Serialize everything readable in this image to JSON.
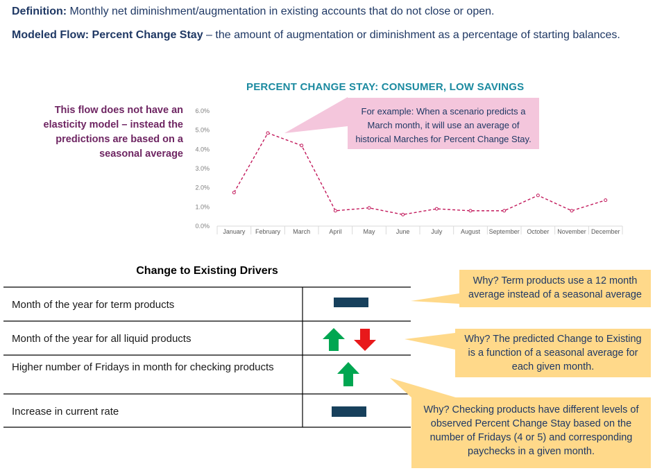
{
  "definition": {
    "label": "Definition:",
    "text": " Monthly net diminishment/augmentation in existing accounts that do not close or open."
  },
  "modeled_flow": {
    "label": "Modeled Flow: Percent Change Stay",
    "text": " – the amount of augmentation or diminishment as a percentage of starting balances."
  },
  "side_note": "This flow does not have an elasticity model – instead the predictions are based on a seasonal average",
  "chart_callout": "For example: When a scenario predicts a March month, it will use an average of historical Marches for Percent Change Stay.",
  "chart_data": {
    "type": "line",
    "title": "PERCENT CHANGE STAY: CONSUMER, LOW SAVINGS",
    "categories": [
      "January",
      "February",
      "March",
      "April",
      "May",
      "June",
      "July",
      "August",
      "September",
      "October",
      "November",
      "December"
    ],
    "series": [
      {
        "values": [
          1.75,
          4.85,
          4.2,
          0.8,
          0.95,
          0.6,
          0.9,
          0.8,
          0.8,
          1.6,
          0.8,
          1.35
        ]
      }
    ],
    "y_ticks": [
      "0.0%",
      "1.0%",
      "2.0%",
      "3.0%",
      "4.0%",
      "5.0%",
      "6.0%"
    ],
    "ylim": [
      0,
      6
    ],
    "xlabel": "",
    "ylabel": "",
    "grid": false,
    "line_style": "dashed",
    "line_color": "#c2185b"
  },
  "table": {
    "title": "Change to Existing Drivers",
    "rows": [
      {
        "label": "Month of the year for term products",
        "indicator": "no-change"
      },
      {
        "label": "Month of the year for all liquid products",
        "indicator": "up-and-down"
      },
      {
        "label": "Higher number of Fridays in month for checking products",
        "indicator": "up"
      },
      {
        "label": "Increase in current rate",
        "indicator": "no-change"
      }
    ]
  },
  "notes": [
    "Why? Term products use a 12 month average instead of a seasonal average",
    "Why? The predicted Change to Existing is a function of a seasonal average for each given month.",
    "Why? Checking products have different levels of observed Percent Change Stay based on the number of Fridays (4 or 5) and corresponding paychecks in a given month."
  ],
  "colors": {
    "up_arrow": "#00a651",
    "down_arrow": "#e8191b",
    "no_change_bar": "#17405c",
    "note_bg": "#ffd98a",
    "callout_bg": "#f4c6dc"
  }
}
